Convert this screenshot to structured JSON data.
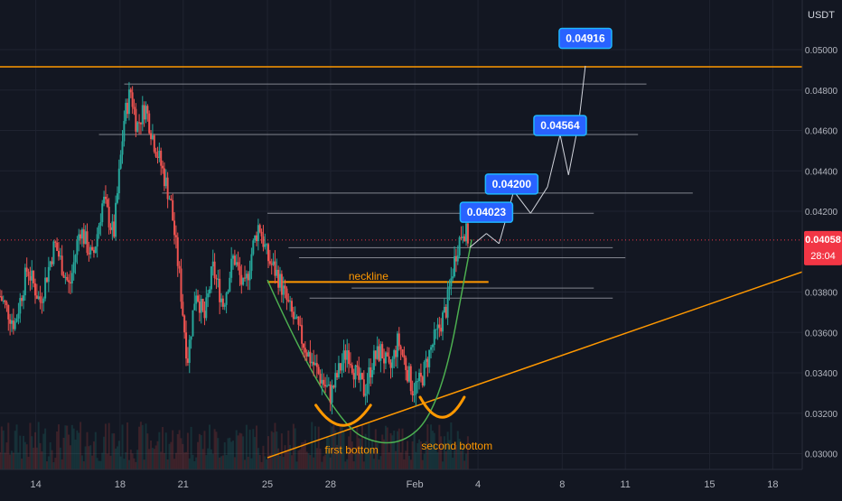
{
  "chart_data": {
    "type": "candlestick",
    "quote_currency": "USDT",
    "grid": true,
    "x_axis": {
      "ticks": [
        {
          "label": "14",
          "day": 14
        },
        {
          "label": "18",
          "day": 18
        },
        {
          "label": "21",
          "day": 21
        },
        {
          "label": "25",
          "day": 25
        },
        {
          "label": "28",
          "day": 28
        },
        {
          "label": "Feb",
          "day": 32
        },
        {
          "label": "4",
          "day": 35
        },
        {
          "label": "8",
          "day": 39
        },
        {
          "label": "11",
          "day": 42
        },
        {
          "label": "15",
          "day": 46
        },
        {
          "label": "18",
          "day": 49
        }
      ],
      "range_days": [
        12.3,
        50.4
      ]
    },
    "y_axis": {
      "ticks": [
        "0.05000",
        "0.04800",
        "0.04600",
        "0.04400",
        "0.04200",
        "0.03800",
        "0.03600",
        "0.03400",
        "0.03200",
        "0.03000"
      ],
      "range": [
        0.02922,
        0.05246
      ]
    },
    "last_price": {
      "value": "0.04058",
      "countdown": "28:04",
      "color": "#f23645"
    },
    "price_path": [
      [
        12.3,
        0.0378
      ],
      [
        13.0,
        0.0364
      ],
      [
        13.6,
        0.0392
      ],
      [
        14.2,
        0.0375
      ],
      [
        14.9,
        0.0404
      ],
      [
        15.6,
        0.0382
      ],
      [
        16.1,
        0.0412
      ],
      [
        16.7,
        0.0396
      ],
      [
        17.2,
        0.0426
      ],
      [
        17.7,
        0.0408
      ],
      [
        18.2,
        0.0466
      ],
      [
        18.5,
        0.048
      ],
      [
        18.8,
        0.0462
      ],
      [
        19.2,
        0.0472
      ],
      [
        19.6,
        0.0455
      ],
      [
        20.0,
        0.0441
      ],
      [
        20.4,
        0.0425
      ],
      [
        20.8,
        0.039
      ],
      [
        21.2,
        0.0346
      ],
      [
        21.6,
        0.0382
      ],
      [
        22.0,
        0.0366
      ],
      [
        22.4,
        0.0392
      ],
      [
        22.9,
        0.0374
      ],
      [
        23.4,
        0.0398
      ],
      [
        23.9,
        0.038
      ],
      [
        24.3,
        0.0402
      ],
      [
        24.6,
        0.0414
      ],
      [
        25.0,
        0.0397
      ],
      [
        25.5,
        0.0388
      ],
      [
        26.0,
        0.0373
      ],
      [
        26.5,
        0.036
      ],
      [
        27.0,
        0.0348
      ],
      [
        27.5,
        0.0338
      ],
      [
        28.0,
        0.0329
      ],
      [
        28.4,
        0.0341
      ],
      [
        28.8,
        0.0352
      ],
      [
        29.2,
        0.0339
      ],
      [
        29.6,
        0.0331
      ],
      [
        30.0,
        0.0346
      ],
      [
        30.4,
        0.0351
      ],
      [
        30.8,
        0.034
      ],
      [
        31.2,
        0.0356
      ],
      [
        31.6,
        0.0343
      ],
      [
        31.9,
        0.0332
      ],
      [
        32.3,
        0.0336
      ],
      [
        32.7,
        0.035
      ],
      [
        33.1,
        0.0361
      ],
      [
        33.5,
        0.0372
      ],
      [
        33.8,
        0.0391
      ],
      [
        34.0,
        0.0402
      ],
      [
        34.3,
        0.0412
      ],
      [
        34.6,
        0.0405
      ]
    ],
    "series": [
      {
        "name": "neckline",
        "color": "#ff9800",
        "points": [
          [
            25.0,
            0.0385
          ],
          [
            35.5,
            0.0385
          ]
        ]
      },
      {
        "name": "trendline",
        "color": "#ff9800",
        "points": [
          [
            25.0,
            0.0298
          ],
          [
            50.4,
            0.039
          ]
        ]
      },
      {
        "name": "resistance",
        "color": "#ff9800",
        "points": [
          [
            12.3,
            0.04915
          ],
          [
            50.4,
            0.04915
          ]
        ]
      },
      {
        "name": "cup",
        "color": "#4caf50",
        "points": [
          [
            25.0,
            0.0386
          ],
          [
            28.0,
            0.0316
          ],
          [
            31.0,
            0.0301
          ],
          [
            33.2,
            0.0322
          ],
          [
            34.7,
            0.0406
          ]
        ]
      }
    ],
    "levels": [
      {
        "value": 0.0483,
        "from": 18.2,
        "to": 43.0
      },
      {
        "value": 0.0458,
        "from": 17.0,
        "to": 42.6
      },
      {
        "value": 0.0429,
        "from": 20.0,
        "to": 45.2
      },
      {
        "value": 0.0419,
        "from": 25.0,
        "to": 40.5
      },
      {
        "value": 0.0402,
        "from": 26.0,
        "to": 41.4
      },
      {
        "value": 0.0397,
        "from": 26.5,
        "to": 42.0
      },
      {
        "value": 0.0382,
        "from": 29.0,
        "to": 40.5
      },
      {
        "value": 0.0377,
        "from": 27.0,
        "to": 41.4
      }
    ],
    "targets": [
      {
        "label": "0.04023",
        "day": 35.4,
        "price": 0.04195
      },
      {
        "label": "0.04200",
        "day": 36.6,
        "price": 0.04335
      },
      {
        "label": "0.04564",
        "day": 38.9,
        "price": 0.04625
      },
      {
        "label": "0.04916",
        "day": 40.1,
        "price": 0.05056
      }
    ],
    "annotations": [
      {
        "text": "neckline",
        "day": 29.8,
        "price": 0.0386
      },
      {
        "text": "first bottom",
        "day": 29.0,
        "price": 0.03
      },
      {
        "text": "second bottom",
        "day": 34.0,
        "price": 0.0302
      }
    ]
  }
}
